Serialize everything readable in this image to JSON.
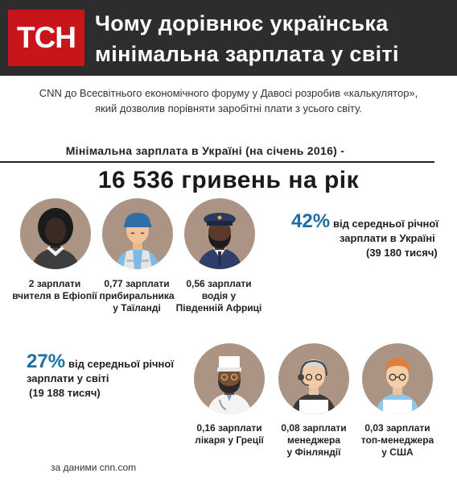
{
  "header": {
    "logo": "ТСН",
    "title_line1": "Чому дорівнює українська",
    "title_line2": "мінімальна зарплата у світі"
  },
  "intro": {
    "line1": "CNN до Всесвітнього економічного форуму у Давосі розробив «калькулятор»,",
    "line2": "який дозволив порівняти заробітні плати з усього світу."
  },
  "minwage": {
    "label": "Мінімальна зарплата в Україні (на січень 2016) -",
    "amount": "16 536 гривень на рік"
  },
  "stat_ukraine": {
    "percent": "42%",
    "text1": "від середньої річної",
    "text2": "зарплати в Україні",
    "sum": "(39 180 тисяч)"
  },
  "stat_world": {
    "percent": "27%",
    "text1": "від середньої річної",
    "text2": "зарплати у світі",
    "sum": "(19 188 тисяч)"
  },
  "comparisons": [
    {
      "line1": "2 зарплати",
      "line2": "вчителя в Ефіопії",
      "line3": "",
      "icon": "ethiopian-teacher-icon"
    },
    {
      "line1": "0,77 зарплати",
      "line2": "прибиральника",
      "line3": "у Таїланді",
      "icon": "thai-cleaner-icon"
    },
    {
      "line1": "0,56 зарплати",
      "line2": "водія у",
      "line3": "Південній Африці",
      "icon": "south-african-driver-icon"
    },
    {
      "line1": "0,16 зарплати",
      "line2": "лікаря у Греції",
      "line3": "",
      "icon": "greek-doctor-icon"
    },
    {
      "line1": "0,08 зарплати",
      "line2": "менеджера",
      "line3": "у Фінляндії",
      "icon": "finnish-manager-icon"
    },
    {
      "line1": "0,03 зарплати",
      "line2": "топ-менеджера",
      "line3": "у США",
      "icon": "us-top-manager-icon"
    }
  ],
  "source": "за даними cnn.com",
  "colors": {
    "header_bg": "#2d2d2d",
    "logo_bg": "#c8151b",
    "accent_blue": "#1d6fa5",
    "avatar_bg": "#ab9484"
  }
}
